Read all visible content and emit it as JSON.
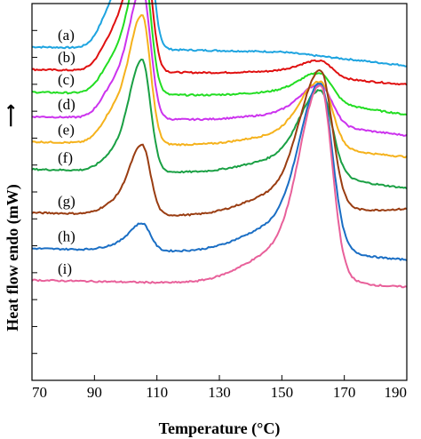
{
  "chart_data": {
    "type": "line",
    "title": "",
    "xlabel": "Temperature (°C)",
    "ylabel": "Heat flow endo (mW)",
    "ylabel_arrow": "⟶",
    "xlim": [
      70,
      190
    ],
    "xticks": [
      70,
      90,
      110,
      130,
      150,
      170,
      190
    ],
    "y_tick_count": 13,
    "grid": false,
    "legend": "none",
    "series": [
      {
        "name": "(a)",
        "color": "#1ea4e0",
        "baseline": 1.0,
        "p1": 0.475,
        "p2": 0.0,
        "tail": -0.03
      },
      {
        "name": "(b)",
        "color": "#e01010",
        "baseline": 0.94,
        "p1": 0.388,
        "p2": 0.04,
        "tail": -0.02
      },
      {
        "name": "(c)",
        "color": "#22dd22",
        "baseline": 0.88,
        "p1": 0.357,
        "p2": 0.07,
        "tail": -0.04
      },
      {
        "name": "(d)",
        "color": "#cc33ee",
        "baseline": 0.815,
        "p1": 0.343,
        "p2": 0.098,
        "tail": -0.03
      },
      {
        "name": "(e)",
        "color": "#f5b21c",
        "baseline": 0.748,
        "p1": 0.337,
        "p2": 0.164,
        "tail": -0.02
      },
      {
        "name": "(f)",
        "color": "#1aa044",
        "baseline": 0.675,
        "p1": 0.295,
        "p2": 0.211,
        "tail": -0.03
      },
      {
        "name": "(g)",
        "color": "#9a3d12",
        "baseline": 0.56,
        "p1": 0.184,
        "p2": 0.347,
        "tail": 0.03
      },
      {
        "name": "(h)",
        "color": "#1a6ec4",
        "baseline": 0.465,
        "p1": 0.072,
        "p2": 0.413,
        "tail": -0.01
      },
      {
        "name": "(i)",
        "color": "#e8609a",
        "baseline": 0.381,
        "p1": 0.0,
        "p2": 0.48,
        "tail": 0.002
      }
    ]
  }
}
